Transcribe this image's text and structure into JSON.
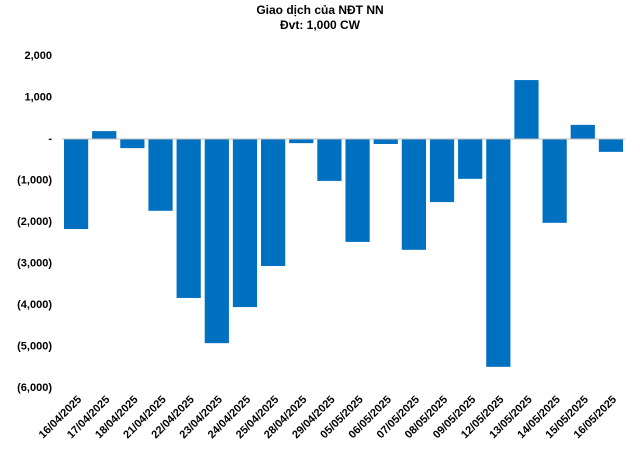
{
  "chart_data": {
    "type": "bar",
    "title": "Giao dịch của NĐT NN",
    "subtitle": "Đvt: 1,000 CW",
    "categories": [
      "16/04/2025",
      "17/04/2025",
      "18/04/2025",
      "21/04/2025",
      "22/04/2025",
      "23/04/2025",
      "24/04/2025",
      "25/04/2025",
      "28/04/2025",
      "29/04/2025",
      "05/05/2025",
      "06/05/2025",
      "07/05/2025",
      "08/05/2025",
      "09/05/2025",
      "12/05/2025",
      "13/05/2025",
      "14/05/2025",
      "15/05/2025",
      "16/05/2025"
    ],
    "values": [
      -2170,
      190,
      -220,
      -1730,
      -3830,
      -4920,
      -4050,
      -3060,
      -100,
      -1010,
      -2480,
      -120,
      -2670,
      -1520,
      -960,
      -5490,
      1420,
      -2020,
      340,
      -310
    ],
    "color": "#0070c0",
    "ylim": [
      -6000,
      2000
    ],
    "yticks": [
      {
        "value": 2000,
        "label": "2,000"
      },
      {
        "value": 1000,
        "label": "1,000"
      },
      {
        "value": 0,
        "label": "-"
      },
      {
        "value": -1000,
        "label": "(1,000)"
      },
      {
        "value": -2000,
        "label": "(2,000)"
      },
      {
        "value": -3000,
        "label": "(3,000)"
      },
      {
        "value": -4000,
        "label": "(4,000)"
      },
      {
        "value": -5000,
        "label": "(5,000)"
      },
      {
        "value": -6000,
        "label": "(6,000)"
      }
    ],
    "grid": false
  }
}
